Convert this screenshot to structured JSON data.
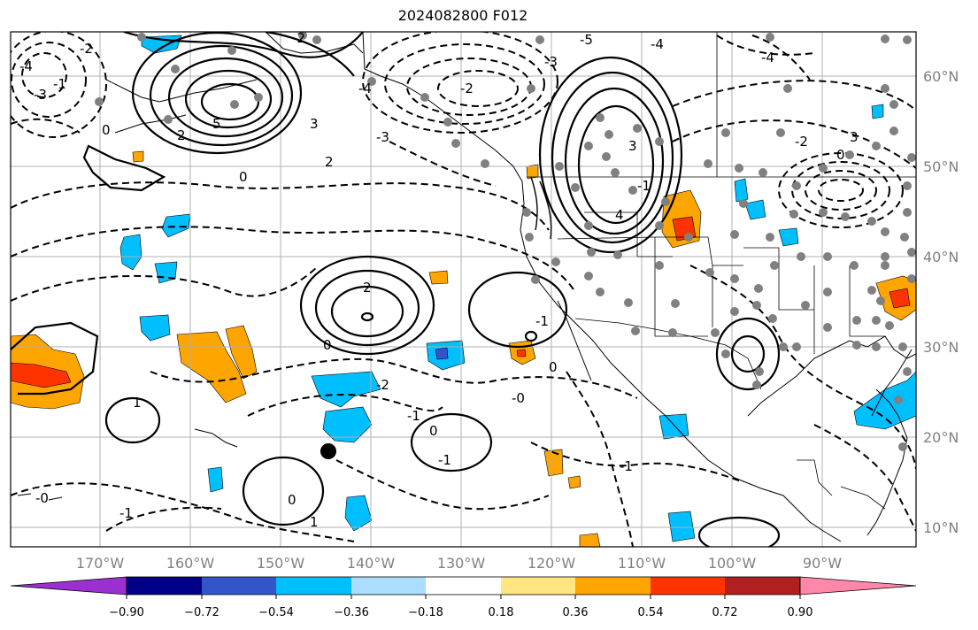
{
  "title": "2024082800 F012",
  "lat_labels": [
    "60°N",
    "50°N",
    "40°N",
    "30°N",
    "20°N",
    "10°N"
  ],
  "lon_labels": [
    "170°W",
    "160°W",
    "150°W",
    "140°W",
    "130°W",
    "120°W",
    "110°W",
    "100°W",
    "90°W"
  ],
  "colorbar": {
    "ticks": [
      "−0.90",
      "−0.72",
      "−0.54",
      "−0.36",
      "−0.18",
      "0.18",
      "0.36",
      "0.54",
      "0.72",
      "0.90"
    ],
    "colors": [
      "#9b30d0",
      "#000088",
      "#3355cc",
      "#00bfff",
      "#aaddff",
      "#ffffff",
      "#ffe680",
      "#ffa500",
      "#ff3300",
      "#b02020",
      "#ff88aa"
    ]
  },
  "shading_colors": {
    "cyan": "#00bfff",
    "orange": "#ffa500",
    "red": "#ff3300",
    "blue": "#3355cc"
  },
  "contour_labels": [
    "-4",
    "-2",
    "-3",
    "-1",
    "0",
    "5",
    "2",
    "3",
    "-2",
    "-5",
    "-4",
    "-1",
    "-2",
    "-3",
    "2",
    "-4",
    "3",
    "0",
    "-2",
    "0",
    "0",
    "-1",
    "-0",
    "-2",
    "-1",
    "0",
    "-1",
    "0",
    "1",
    "-0",
    "-1",
    "-4",
    "4",
    "-3",
    "2",
    "3",
    "0",
    "1",
    "-1"
  ]
}
